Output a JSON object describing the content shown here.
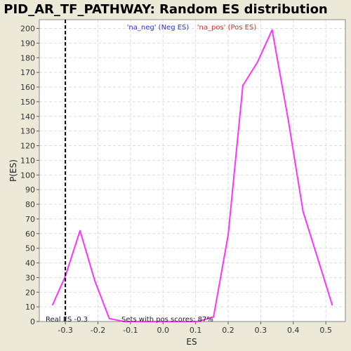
{
  "chart_data": {
    "type": "line",
    "title": "PID_AR_TF_PATHWAY: Random ES distribution",
    "xlabel": "ES",
    "ylabel": "P(ES)",
    "xlim": [
      -0.38,
      0.56
    ],
    "ylim": [
      0,
      206
    ],
    "x_ticks": [
      -0.3,
      -0.2,
      -0.1,
      0.0,
      0.1,
      0.2,
      0.3,
      0.4,
      0.5
    ],
    "x_tick_labels": [
      "-0.3",
      "-0.2",
      "-0.1",
      "0.0",
      "0.1",
      "0.2",
      "0.3",
      "0.4",
      "0.5"
    ],
    "y_ticks": [
      0,
      10,
      20,
      30,
      40,
      50,
      60,
      70,
      80,
      90,
      100,
      110,
      120,
      130,
      140,
      150,
      160,
      170,
      180,
      190,
      200
    ],
    "y_tick_labels": [
      "0",
      "10",
      "20",
      "30",
      "40",
      "50",
      "60",
      "70",
      "80",
      "90",
      "100",
      "110",
      "120",
      "130",
      "140",
      "150",
      "160",
      "170",
      "180",
      "190",
      "200"
    ],
    "grid": true,
    "legend": {
      "placement": "top-center",
      "entries": [
        {
          "label": "'na_neg' (Neg ES)",
          "color": "#3333cc"
        },
        {
          "label": "'na_pos' (Pos ES)",
          "color": "#cc3333"
        }
      ]
    },
    "series": [
      {
        "color": "#ff33ff",
        "x": [
          -0.34,
          -0.3,
          -0.255,
          -0.21,
          -0.165,
          -0.12,
          -0.075,
          -0.03,
          0.015,
          0.06,
          0.105,
          0.155,
          0.2,
          0.245,
          0.29,
          0.335,
          0.385,
          0.43,
          0.475,
          0.52
        ],
        "y": [
          11,
          31,
          62,
          28,
          2,
          0,
          0,
          0,
          0,
          0,
          0,
          3,
          59,
          161,
          177,
          199,
          137,
          75,
          43,
          11
        ]
      }
    ],
    "real_es": {
      "value": -0.3,
      "label": "Real ES -0.3",
      "line_style": "dashed",
      "color": "#000000"
    },
    "annotation": "Sets with pos scores: 87%"
  },
  "colors": {
    "background": "#ece9d8",
    "plot_background": "#ffffff",
    "grid": "#dddddd",
    "curve": "#ff33ff"
  }
}
